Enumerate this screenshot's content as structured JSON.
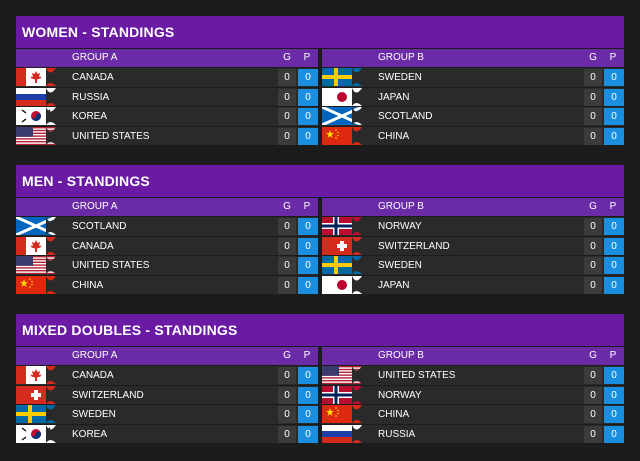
{
  "sections": [
    {
      "title": "WOMEN - STANDINGS",
      "groups": [
        {
          "name": "GROUP A",
          "col_g": "G",
          "col_p": "P",
          "rows": [
            {
              "team": "CANADA",
              "flag": "canada-flag-icon",
              "g": "0",
              "p": "0"
            },
            {
              "team": "RUSSIA",
              "flag": "russia-flag-icon",
              "g": "0",
              "p": "0"
            },
            {
              "team": "KOREA",
              "flag": "korea-flag-icon",
              "g": "0",
              "p": "0"
            },
            {
              "team": "UNITED STATES",
              "flag": "usa-flag-icon",
              "g": "0",
              "p": "0"
            }
          ]
        },
        {
          "name": "GROUP B",
          "col_g": "G",
          "col_p": "P",
          "rows": [
            {
              "team": "SWEDEN",
              "flag": "sweden-flag-icon",
              "g": "0",
              "p": "0"
            },
            {
              "team": "JAPAN",
              "flag": "japan-flag-icon",
              "g": "0",
              "p": "0"
            },
            {
              "team": "SCOTLAND",
              "flag": "scotland-flag-icon",
              "g": "0",
              "p": "0"
            },
            {
              "team": "CHINA",
              "flag": "china-flag-icon",
              "g": "0",
              "p": "0"
            }
          ]
        }
      ]
    },
    {
      "title": "MEN - STANDINGS",
      "groups": [
        {
          "name": "GROUP A",
          "col_g": "G",
          "col_p": "P",
          "rows": [
            {
              "team": "SCOTLAND",
              "flag": "scotland-flag-icon",
              "g": "0",
              "p": "0"
            },
            {
              "team": "CANADA",
              "flag": "canada-flag-icon",
              "g": "0",
              "p": "0"
            },
            {
              "team": "UNITED STATES",
              "flag": "usa-flag-icon",
              "g": "0",
              "p": "0"
            },
            {
              "team": "CHINA",
              "flag": "china-flag-icon",
              "g": "0",
              "p": "0"
            }
          ]
        },
        {
          "name": "GROUP B",
          "col_g": "G",
          "col_p": "P",
          "rows": [
            {
              "team": "NORWAY",
              "flag": "norway-flag-icon",
              "g": "0",
              "p": "0"
            },
            {
              "team": "SWITZERLAND",
              "flag": "switzerland-flag-icon",
              "g": "0",
              "p": "0"
            },
            {
              "team": "SWEDEN",
              "flag": "sweden-flag-icon",
              "g": "0",
              "p": "0"
            },
            {
              "team": "JAPAN",
              "flag": "japan-flag-icon",
              "g": "0",
              "p": "0"
            }
          ]
        }
      ]
    },
    {
      "title": "MIXED DOUBLES - STANDINGS",
      "groups": [
        {
          "name": "GROUP A",
          "col_g": "G",
          "col_p": "P",
          "rows": [
            {
              "team": "CANADA",
              "flag": "canada-flag-icon",
              "g": "0",
              "p": "0"
            },
            {
              "team": "SWITZERLAND",
              "flag": "switzerland-flag-icon",
              "g": "0",
              "p": "0"
            },
            {
              "team": "SWEDEN",
              "flag": "sweden-flag-icon",
              "g": "0",
              "p": "0"
            },
            {
              "team": "KOREA",
              "flag": "korea-flag-icon",
              "g": "0",
              "p": "0"
            }
          ]
        },
        {
          "name": "GROUP B",
          "col_g": "G",
          "col_p": "P",
          "rows": [
            {
              "team": "UNITED STATES",
              "flag": "usa-flag-icon",
              "g": "0",
              "p": "0"
            },
            {
              "team": "NORWAY",
              "flag": "norway-flag-icon",
              "g": "0",
              "p": "0"
            },
            {
              "team": "CHINA",
              "flag": "china-flag-icon",
              "g": "0",
              "p": "0"
            },
            {
              "team": "RUSSIA",
              "flag": "russia-flag-icon",
              "g": "0",
              "p": "0"
            }
          ]
        }
      ]
    }
  ],
  "colors": {
    "section_header": "#6a1aa3",
    "group_header": "#6b2aa6",
    "points_cell": "#1a8fe0",
    "background": "#1c1c1c"
  }
}
